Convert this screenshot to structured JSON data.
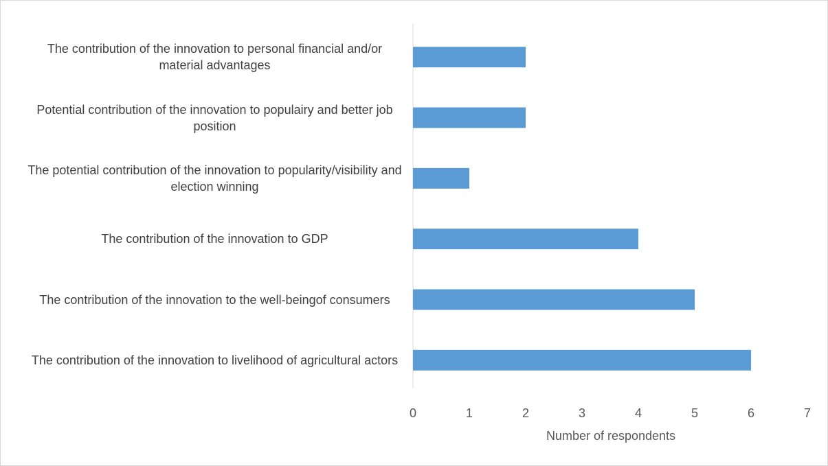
{
  "chart_data": {
    "type": "bar",
    "orientation": "horizontal",
    "categories": [
      "The contribution of the innovation to personal financial and/or material advantages",
      "Potential contribution of the innovation to populairy and better job position",
      "The potential contribution of the innovation to popularity/visibility and election winning",
      "The contribution of the innovation to GDP",
      "The contribution of the innovation to the well-beingof consumers",
      "The contribution of the innovation to livelihood of agricultural actors"
    ],
    "values": [
      2,
      2,
      1,
      4,
      5,
      6
    ],
    "color": "#5b9bd5",
    "xlabel": "Number of respondents",
    "xlim": [
      0,
      7
    ],
    "xticks": [
      0,
      1,
      2,
      3,
      4,
      5,
      6,
      7
    ],
    "grid": false
  }
}
